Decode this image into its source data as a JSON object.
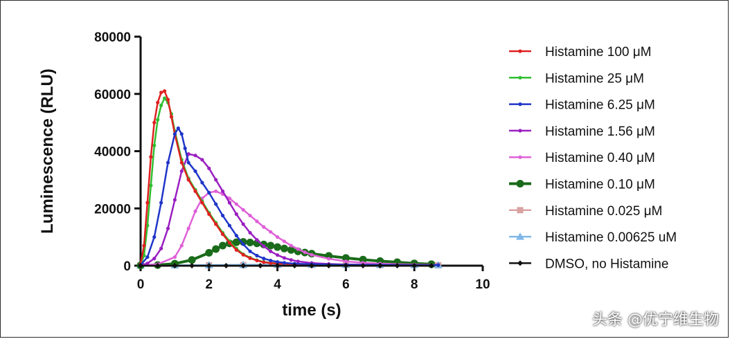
{
  "watermark": "头条 @优宁维生物",
  "chart_data": {
    "type": "line",
    "xlabel": "time (s)",
    "ylabel": "Luminescence (RLU)",
    "xlim": [
      0,
      10
    ],
    "ylim": [
      0,
      80000
    ],
    "xticks": [
      0,
      2,
      4,
      6,
      8,
      10
    ],
    "yticks": [
      0,
      20000,
      40000,
      60000,
      80000
    ],
    "xtick_labels": [
      "0",
      "2",
      "4",
      "6",
      "8",
      "10"
    ],
    "ytick_labels": [
      "0",
      "20000",
      "40000",
      "60000",
      "80000"
    ],
    "grid": false,
    "legend_position": "right",
    "series": [
      {
        "name": "Histamine 100 μM",
        "color": "#e02020",
        "marker": "circle",
        "x": [
          0,
          0.1,
          0.2,
          0.3,
          0.4,
          0.5,
          0.6,
          0.7,
          0.8,
          0.9,
          1.0,
          1.2,
          1.4,
          1.6,
          1.8,
          2.0,
          2.2,
          2.4,
          2.6,
          2.8,
          3.0,
          3.2,
          3.4,
          3.6,
          3.8,
          4.0,
          4.5,
          5.0,
          6.0,
          7.0,
          8.0,
          8.7
        ],
        "y": [
          500,
          7000,
          22000,
          38000,
          50000,
          57000,
          60500,
          61000,
          58000,
          52000,
          46000,
          36000,
          30000,
          26000,
          22000,
          18000,
          14500,
          11000,
          8000,
          5500,
          3800,
          2600,
          1800,
          1200,
          900,
          700,
          500,
          400,
          300,
          300,
          200,
          200
        ]
      },
      {
        "name": "Histamine 25 μM",
        "color": "#2fbf2f",
        "marker": "circle",
        "x": [
          0,
          0.1,
          0.2,
          0.3,
          0.4,
          0.5,
          0.6,
          0.7,
          0.8,
          0.9,
          1.0,
          1.2,
          1.4,
          1.6,
          1.8,
          2.0,
          2.2,
          2.4,
          2.6,
          2.8,
          3.0,
          3.2,
          3.4,
          3.6,
          3.8,
          4.0,
          4.5,
          5.0,
          6.0,
          7.0,
          8.0,
          8.7
        ],
        "y": [
          300,
          3500,
          14000,
          28000,
          42000,
          51000,
          56000,
          58500,
          57000,
          53000,
          47000,
          37000,
          30500,
          26500,
          22500,
          18500,
          15000,
          11500,
          8500,
          6000,
          4000,
          2800,
          1900,
          1300,
          1000,
          800,
          600,
          400,
          300,
          300,
          200,
          200
        ]
      },
      {
        "name": "Histamine 6.25 μM",
        "color": "#1f35c8",
        "marker": "circle",
        "x": [
          0,
          0.2,
          0.4,
          0.6,
          0.8,
          1.0,
          1.1,
          1.2,
          1.3,
          1.4,
          1.6,
          1.8,
          2.0,
          2.2,
          2.4,
          2.6,
          2.8,
          3.0,
          3.2,
          3.4,
          3.6,
          3.8,
          4.0,
          4.2,
          4.5,
          5.0,
          6.0,
          7.0,
          8.0,
          8.7
        ],
        "y": [
          200,
          3000,
          10000,
          22000,
          36000,
          46000,
          48000,
          46000,
          41000,
          36000,
          33000,
          29000,
          25500,
          21500,
          17500,
          14000,
          10500,
          7500,
          5000,
          3500,
          2500,
          1800,
          1300,
          1000,
          700,
          500,
          300,
          300,
          200,
          200
        ]
      },
      {
        "name": "Histamine 1.56 μM",
        "color": "#9a1fc0",
        "marker": "circle",
        "x": [
          0,
          0.2,
          0.4,
          0.6,
          0.8,
          1.0,
          1.2,
          1.4,
          1.6,
          1.8,
          2.0,
          2.2,
          2.4,
          2.6,
          2.8,
          3.0,
          3.2,
          3.4,
          3.6,
          3.8,
          4.0,
          4.2,
          4.4,
          4.6,
          5.0,
          5.5,
          6.0,
          7.0,
          8.0,
          8.7
        ],
        "y": [
          100,
          800,
          2500,
          6000,
          13000,
          23000,
          33000,
          39000,
          38500,
          37000,
          34000,
          30000,
          26000,
          22000,
          18000,
          14500,
          11500,
          9000,
          6800,
          5000,
          3700,
          2700,
          2000,
          1500,
          900,
          600,
          400,
          300,
          200,
          200
        ]
      },
      {
        "name": "Histamine 0.40 μM",
        "color": "#e060d8",
        "marker": "circle",
        "x": [
          0,
          0.5,
          1.0,
          1.2,
          1.4,
          1.6,
          1.8,
          2.0,
          2.2,
          2.4,
          2.6,
          2.8,
          3.0,
          3.2,
          3.4,
          3.6,
          3.8,
          4.0,
          4.2,
          4.4,
          4.6,
          4.8,
          5.0,
          5.5,
          6.0,
          6.5,
          7.0,
          8.0,
          8.7
        ],
        "y": [
          100,
          500,
          3000,
          7000,
          13000,
          19000,
          23500,
          25500,
          26000,
          25000,
          23500,
          21500,
          19500,
          17500,
          15500,
          13500,
          11800,
          10000,
          8500,
          7000,
          5800,
          4700,
          3800,
          2400,
          1500,
          1000,
          700,
          400,
          300
        ]
      },
      {
        "name": "Histamine 0.10 μM",
        "color": "#1a6b1a",
        "marker": "big-circle",
        "x": [
          0,
          0.5,
          1.0,
          1.5,
          2.0,
          2.2,
          2.4,
          2.6,
          2.8,
          3.0,
          3.2,
          3.4,
          3.6,
          3.8,
          4.0,
          4.2,
          4.4,
          4.6,
          4.8,
          5.0,
          5.5,
          6.0,
          6.5,
          7.0,
          7.5,
          8.0,
          8.5
        ],
        "y": [
          100,
          200,
          700,
          2000,
          4500,
          5800,
          7000,
          7800,
          8200,
          8300,
          8100,
          7800,
          7400,
          7000,
          6500,
          6000,
          5500,
          5000,
          4600,
          4200,
          3400,
          2700,
          2100,
          1600,
          1200,
          800,
          500
        ]
      },
      {
        "name": "Histamine 0.025 μM",
        "color": "#d9a3a3",
        "marker": "square",
        "x": [
          0,
          1,
          2,
          3,
          4,
          5,
          6,
          7,
          8,
          8.7
        ],
        "y": [
          100,
          100,
          150,
          200,
          250,
          250,
          250,
          200,
          200,
          150
        ]
      },
      {
        "name": "Histamine 0.00625 uM",
        "color": "#7fb8e8",
        "marker": "triangle",
        "x": [
          0,
          1,
          2,
          3,
          4,
          5,
          6,
          7,
          8,
          8.7
        ],
        "y": [
          100,
          150,
          200,
          300,
          350,
          350,
          300,
          300,
          250,
          200
        ]
      },
      {
        "name": "DMSO, no Histamine",
        "color": "#111111",
        "marker": "diamond",
        "x": [
          0,
          0.5,
          1,
          1.5,
          2,
          2.5,
          3,
          3.5,
          4,
          4.5,
          5,
          5.5,
          6,
          6.5,
          7,
          7.5,
          8,
          8.5
        ],
        "y": [
          0,
          0,
          0,
          0,
          0,
          0,
          0,
          0,
          0,
          0,
          0,
          0,
          0,
          0,
          0,
          0,
          0,
          0
        ]
      }
    ]
  }
}
